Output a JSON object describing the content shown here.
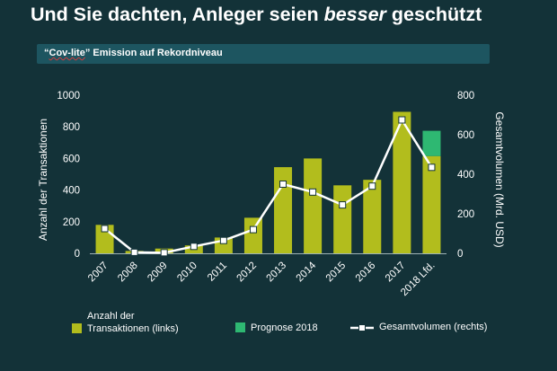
{
  "slide": {
    "title_prefix": "Und Sie dachten, Anleger seien ",
    "title_emphasis": "besser",
    "title_suffix": " geschützt",
    "subtitle_quote_open": "“",
    "subtitle_term": "Cov-lite",
    "subtitle_rest": "” Emission auf Rekordniveau"
  },
  "colors": {
    "background": "#133238",
    "subtitle_bar": "#1d5560",
    "bar_transactions": "#b2bd1d",
    "bar_forecast": "#2eb872",
    "line_volume": "#ffffff",
    "axis_text": "#ffffff"
  },
  "chart_data": {
    "type": "bar",
    "categories": [
      "2007",
      "2008",
      "2009",
      "2010",
      "2011",
      "2012",
      "2013",
      "2014",
      "2015",
      "2016",
      "2017",
      "2018 Lfd."
    ],
    "series": [
      {
        "name": "Anzahl der Transaktionen (links)",
        "kind": "bar",
        "axis": "left",
        "values": [
          180,
          15,
          30,
          50,
          100,
          225,
          545,
          600,
          430,
          465,
          895,
          615
        ]
      },
      {
        "name": "Prognose 2018",
        "kind": "bar-stack",
        "axis": "left",
        "values": [
          0,
          0,
          0,
          0,
          0,
          0,
          0,
          0,
          0,
          0,
          0,
          160
        ]
      },
      {
        "name": "Gesamtvolumen (rechts)",
        "kind": "line",
        "axis": "right",
        "values": [
          125,
          5,
          3,
          35,
          65,
          120,
          350,
          310,
          245,
          340,
          675,
          435
        ]
      }
    ],
    "ylabel_left": "Anzahl der Transaktionen",
    "ylabel_right": "Gesamtvolumen (Mrd. USD)",
    "ylim_left": [
      0,
      1000
    ],
    "yticks_left": [
      "0",
      "200",
      "400",
      "600",
      "800",
      "1000"
    ],
    "ylim_right": [
      0,
      800
    ],
    "yticks_right": [
      "0",
      "200",
      "400",
      "600",
      "800"
    ],
    "grid": false,
    "legend_position": "bottom",
    "legend": [
      {
        "label": "Anzahl der\nTransaktionen (links)",
        "type": "bar"
      },
      {
        "label": "Prognose 2018",
        "type": "forecast"
      },
      {
        "label": "Gesamtvolumen (rechts)",
        "type": "line"
      }
    ]
  }
}
